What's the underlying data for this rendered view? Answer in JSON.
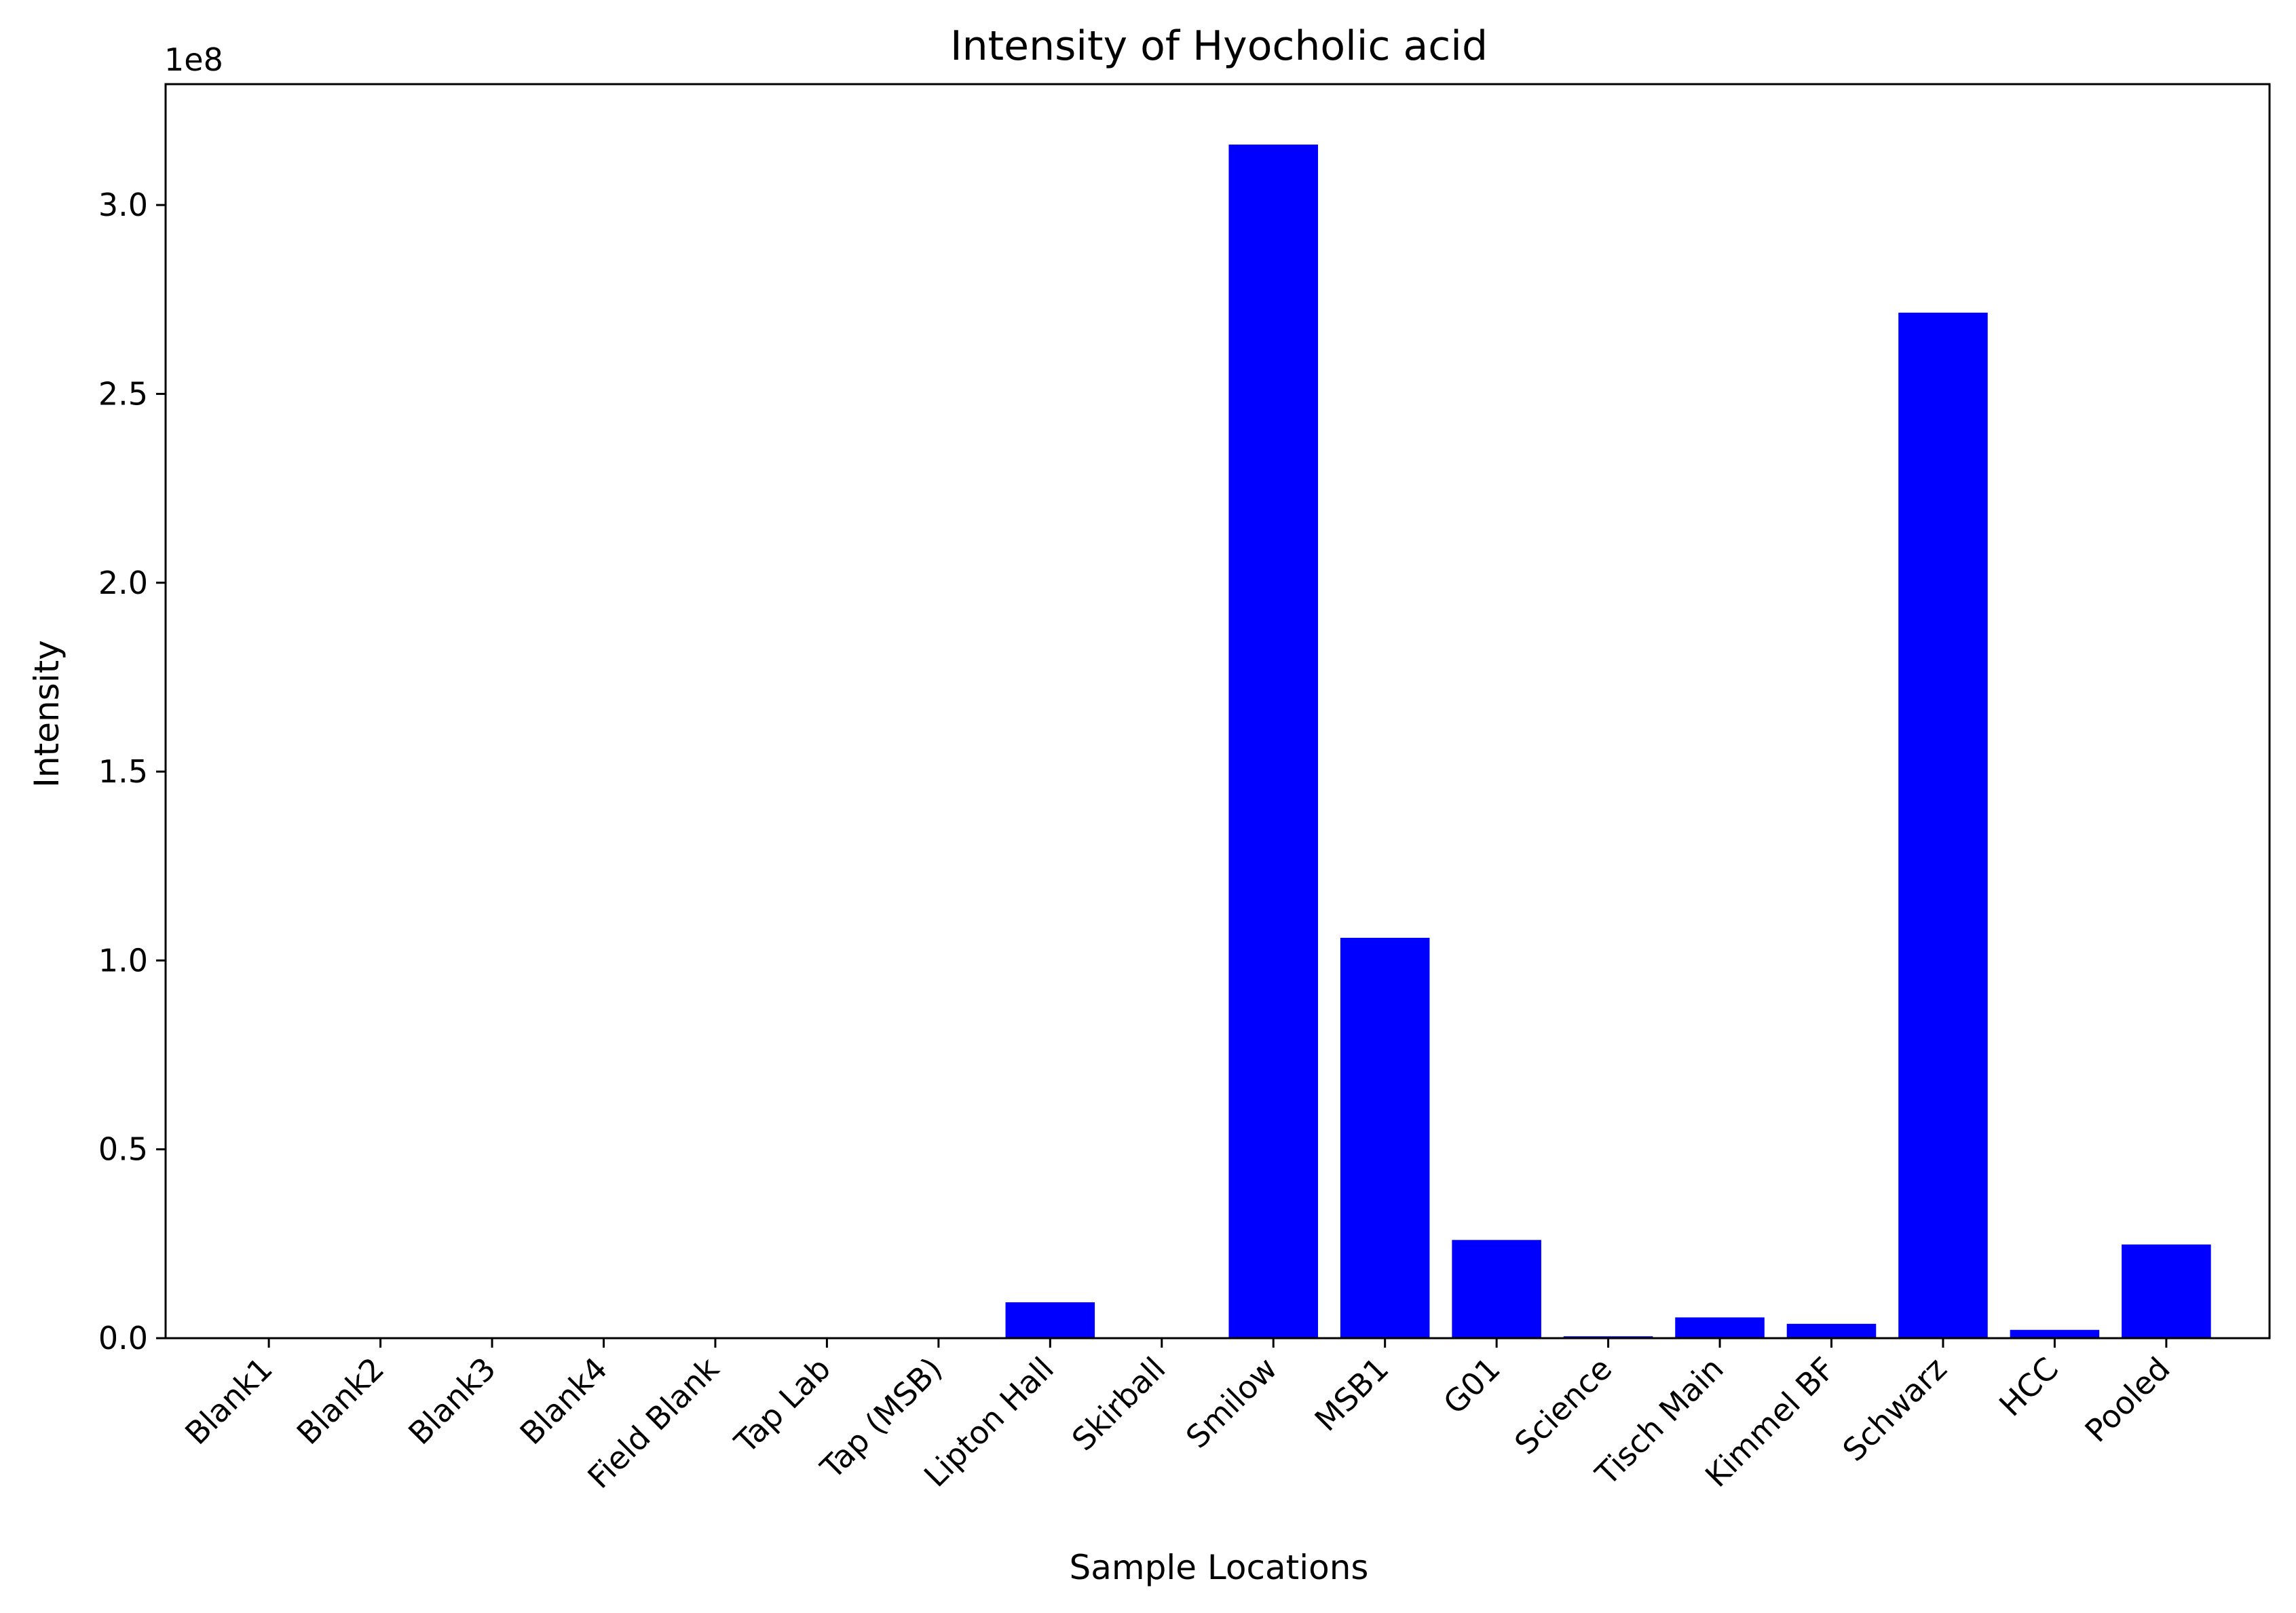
{
  "chart_data": {
    "type": "bar",
    "title": "Intensity of Hyocholic acid",
    "xlabel": "Sample Locations",
    "ylabel": "Intensity",
    "y_offset_label": "1e8",
    "categories": [
      "Blank1",
      "Blank2",
      "Blank3",
      "Blank4",
      "Field Blank",
      "Tap Lab",
      "Tap (MSB)",
      "Lipton Hall",
      "Skirball",
      "Smilow",
      "MSB1",
      "G01",
      "Science",
      "Tisch Main",
      "Kimmel BF",
      "Schwarz",
      "HCC",
      "Pooled"
    ],
    "values": [
      0,
      0,
      0,
      0,
      0,
      0,
      0,
      9500000,
      0,
      316000000,
      106000000,
      26000000,
      500000,
      5500000,
      3800000,
      271500000,
      2200000,
      24800000
    ],
    "ylim": [
      0,
      332000000
    ],
    "y_scale": 100000000,
    "y_ticks": [
      0,
      0.5,
      1.0,
      1.5,
      2.0,
      2.5,
      3.0
    ],
    "y_tick_labels": [
      "0.0",
      "0.5",
      "1.0",
      "1.5",
      "2.0",
      "2.5",
      "3.0"
    ],
    "bar_color": "#0000ff",
    "grid": false,
    "legend": "none"
  }
}
